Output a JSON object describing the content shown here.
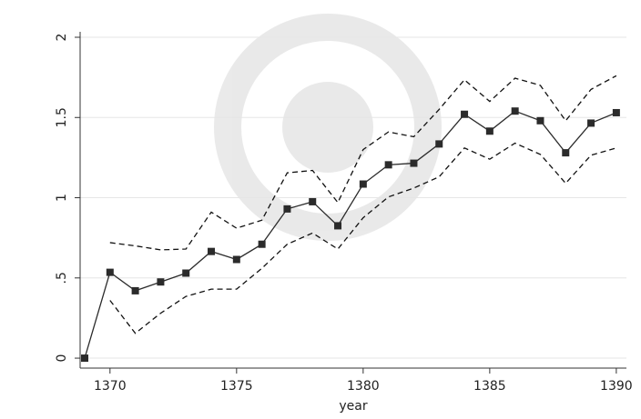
{
  "chart_data": {
    "type": "line",
    "x_label": "year",
    "x": [
      1369,
      1370,
      1371,
      1372,
      1373,
      1374,
      1375,
      1376,
      1377,
      1378,
      1379,
      1380,
      1381,
      1382,
      1383,
      1384,
      1385,
      1386,
      1387,
      1388,
      1389,
      1390
    ],
    "series": [
      {
        "color": "#2b2b2b",
        "style": "solid",
        "markers": true,
        "values": [
          0,
          0.535,
          0.42,
          0.475,
          0.53,
          0.665,
          0.615,
          0.71,
          0.93,
          0.975,
          0.825,
          1.085,
          1.205,
          1.215,
          1.335,
          1.52,
          1.415,
          1.54,
          1.48,
          1.28,
          1.465,
          1.53
        ]
      },
      {
        "color": "#111111",
        "style": "dashed",
        "markers": false,
        "values": [
          null,
          0.72,
          0.7,
          0.675,
          0.68,
          0.91,
          0.81,
          0.86,
          1.155,
          1.17,
          0.97,
          1.3,
          1.41,
          1.38,
          1.55,
          1.735,
          1.6,
          1.745,
          1.7,
          1.48,
          1.675,
          1.76
        ]
      },
      {
        "color": "#111111",
        "style": "dashed",
        "markers": false,
        "values": [
          null,
          0.36,
          0.155,
          0.28,
          0.385,
          0.43,
          0.43,
          0.56,
          0.71,
          0.78,
          0.68,
          0.875,
          1.005,
          1.06,
          1.13,
          1.31,
          1.24,
          1.34,
          1.27,
          1.09,
          1.265,
          1.31
        ]
      }
    ],
    "xlim": [
      1368.82,
      1390.4
    ],
    "xticks": [
      1370,
      1375,
      1380,
      1385,
      1390
    ],
    "ylim": [
      -0.062,
      2.034
    ],
    "yticks": [
      0,
      {
        "value": 0.5,
        "label": ".5"
      },
      1,
      1.5,
      2
    ],
    "grid": true
  }
}
